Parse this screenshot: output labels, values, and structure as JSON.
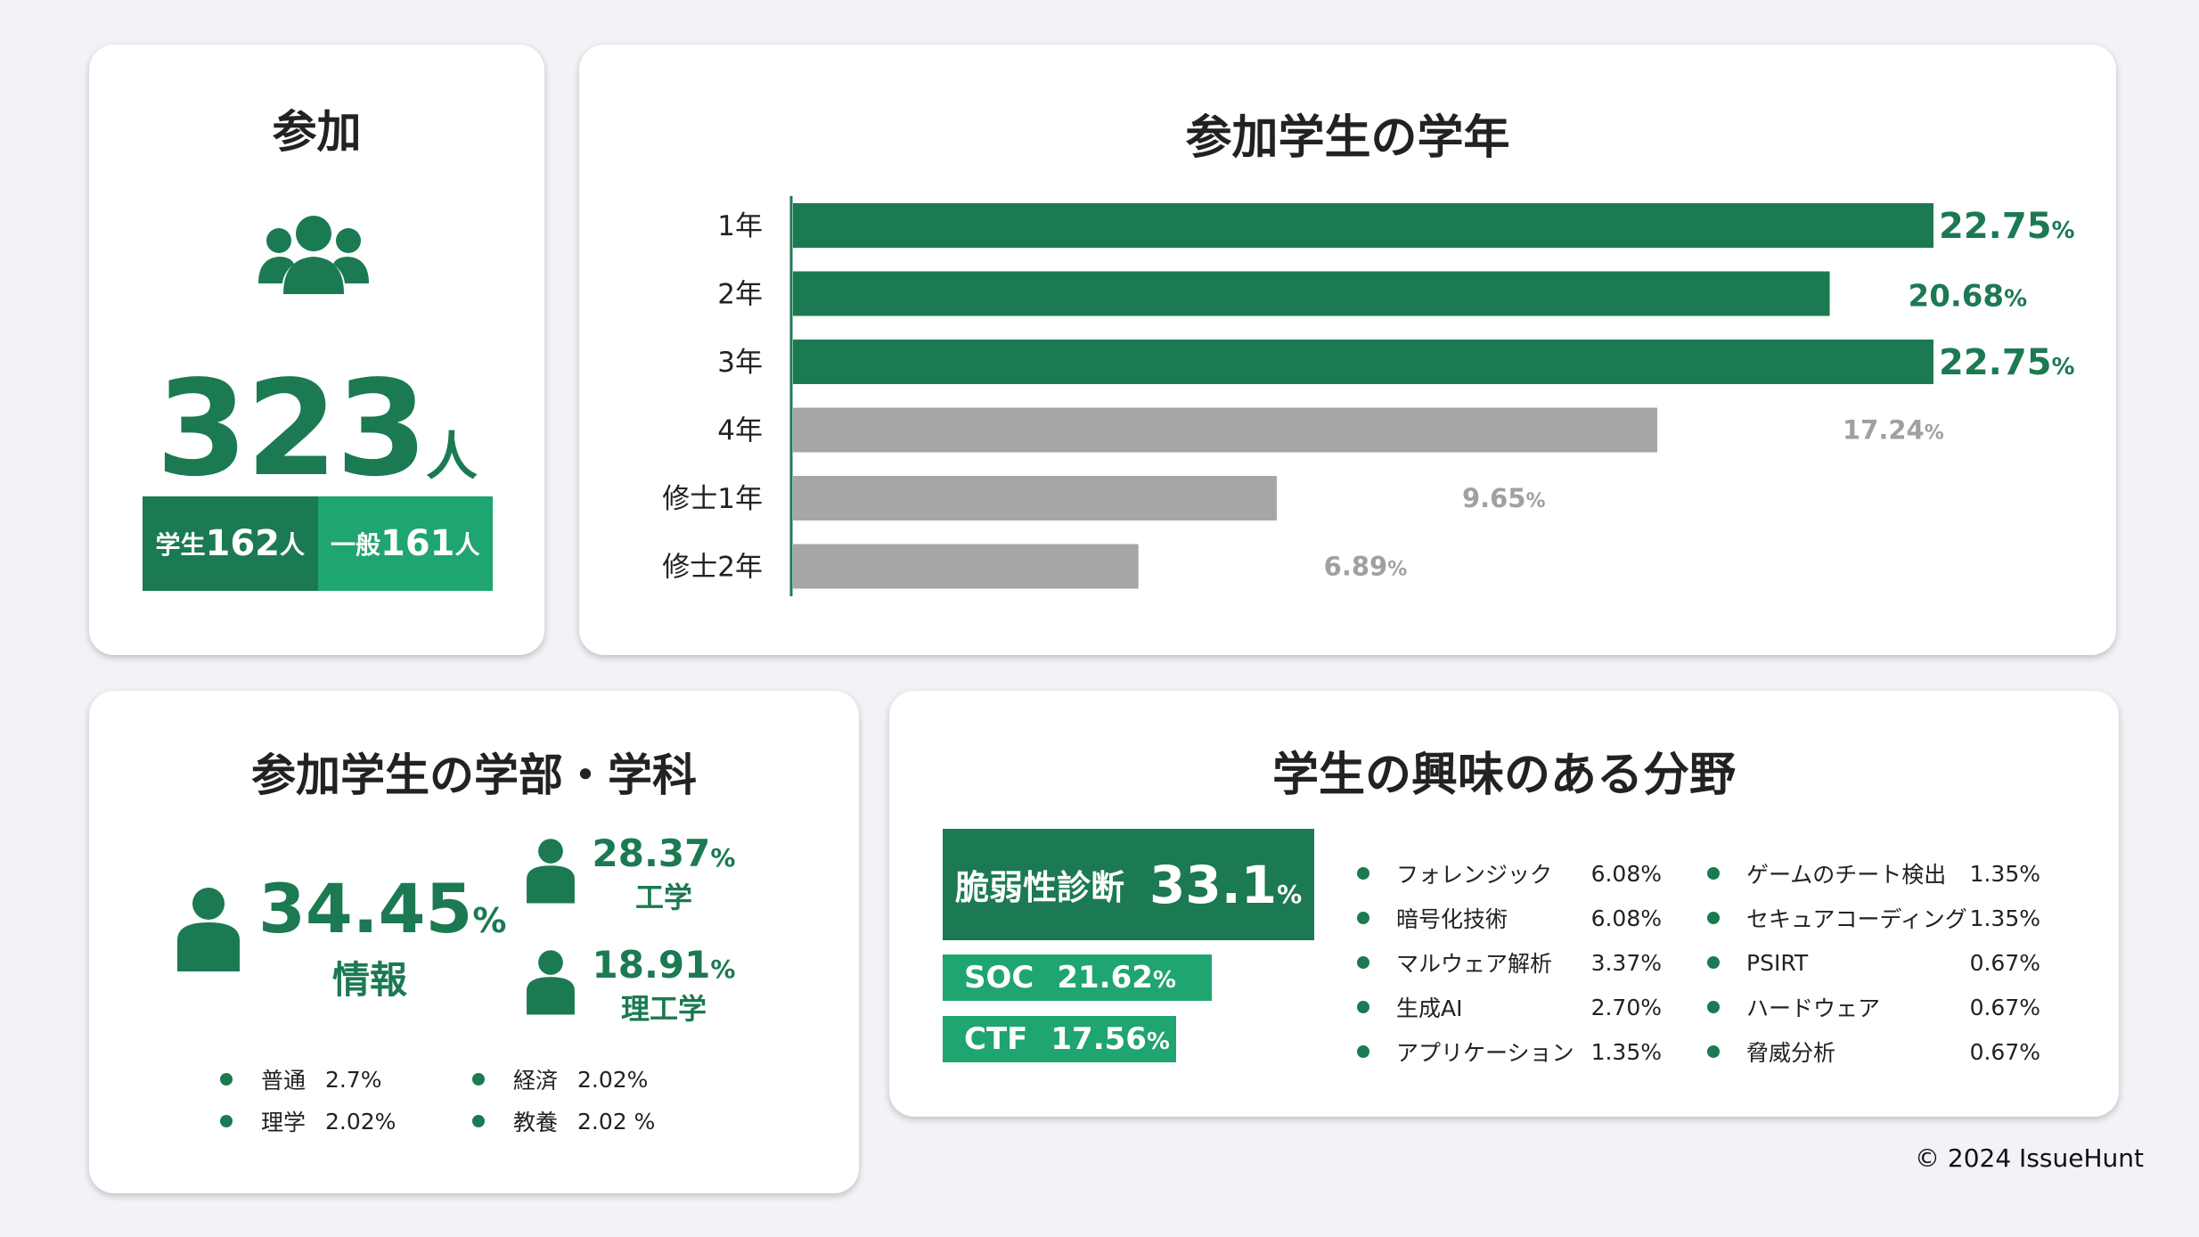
{
  "participation": {
    "title": "参加",
    "total": "323",
    "total_unit": "人",
    "students_label": "学生",
    "students_value": "162",
    "general_label": "一般",
    "general_value": "161",
    "unit": "人"
  },
  "grade": {
    "title": "参加学生の学年"
  },
  "chart_data": {
    "type": "bar",
    "orientation": "horizontal",
    "title": "参加学生の学年",
    "categories": [
      "1年",
      "2年",
      "3年",
      "4年",
      "修士1年",
      "修士2年"
    ],
    "values": [
      22.75,
      20.68,
      22.75,
      17.24,
      9.65,
      6.89
    ],
    "value_labels": [
      "22.75",
      "20.68",
      "22.75",
      "17.24",
      "9.65",
      "6.89"
    ],
    "value_unit": "%",
    "highlight": [
      true,
      true,
      true,
      false,
      false,
      false
    ],
    "colors": {
      "highlight": "#1b7a52",
      "muted": "#a6a6a6",
      "muted_text": "#a0a0a0"
    },
    "grid": false,
    "legend": "none"
  },
  "faculty": {
    "title": "参加学生の学部・学科",
    "main": {
      "pct": "34.45",
      "unit": "%",
      "name": "情報"
    },
    "eng": {
      "pct": "28.37",
      "unit": "%",
      "name": "工学"
    },
    "sci_eng": {
      "pct": "18.91",
      "unit": "%",
      "name": "理工学"
    },
    "minor": [
      {
        "name": "普通",
        "pct": "2.7%"
      },
      {
        "name": "経済",
        "pct": "2.02%"
      },
      {
        "name": "理学",
        "pct": "2.02%"
      },
      {
        "name": "教養",
        "pct": "2.02 %"
      }
    ]
  },
  "interest": {
    "title": "学生の興味のある分野",
    "top": [
      {
        "name": "脆弱性診断",
        "pct": "33.1",
        "unit": "%"
      },
      {
        "name": "SOC",
        "pct": "21.62",
        "unit": "%"
      },
      {
        "name": "CTF",
        "pct": "17.56",
        "unit": "%"
      }
    ],
    "list_left": [
      {
        "name": "フォレンジック",
        "pct": "6.08%"
      },
      {
        "name": "暗号化技術",
        "pct": "6.08%"
      },
      {
        "name": "マルウェア解析",
        "pct": "3.37%"
      },
      {
        "name": "生成AI",
        "pct": "2.70%"
      },
      {
        "name": "アプリケーション",
        "pct": "1.35%"
      }
    ],
    "list_right": [
      {
        "name": "ゲームのチート検出",
        "pct": "1.35%"
      },
      {
        "name": "セキュアコーディング",
        "pct": "1.35%"
      },
      {
        "name": "PSIRT",
        "pct": "0.67%"
      },
      {
        "name": "ハードウェア",
        "pct": "0.67%"
      },
      {
        "name": "脅威分析",
        "pct": "0.67%"
      }
    ]
  },
  "footer": {
    "copyright": "© 2024 IssueHunt"
  },
  "colors": {
    "dark_green": "#1b7a52",
    "light_green": "#1fa56f",
    "gray": "#a6a6a6",
    "background": "#f1f3f7"
  }
}
